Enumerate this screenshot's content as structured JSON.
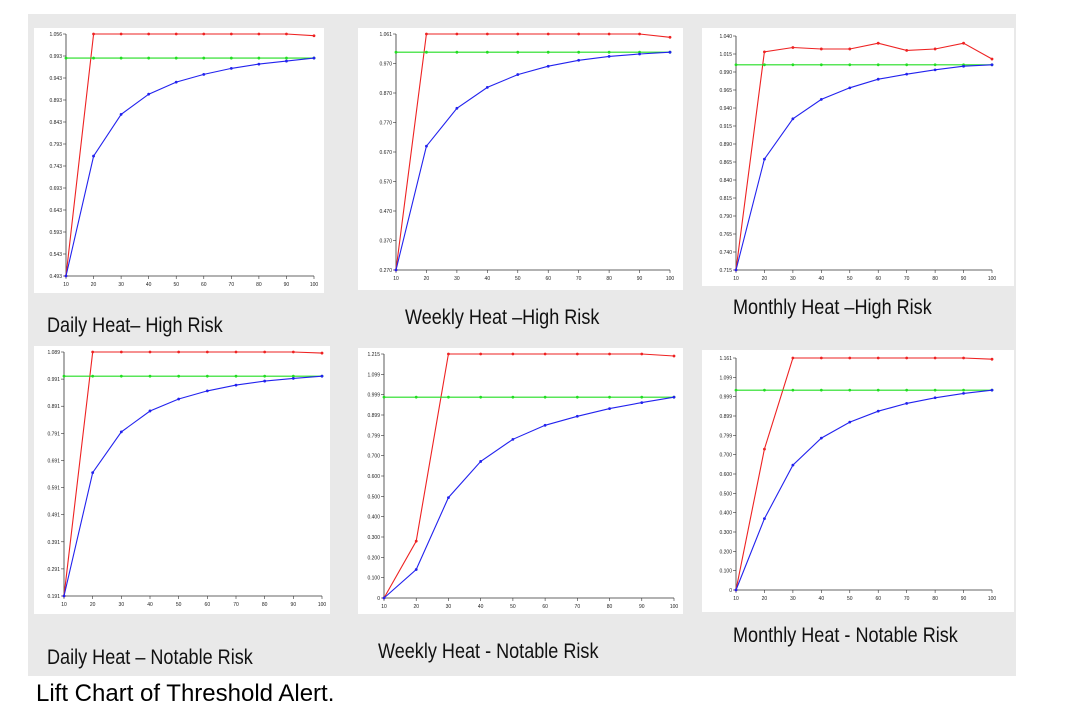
{
  "caption": "Lift Chart of Threshold Alert.",
  "colors": {
    "red": "#ee2222",
    "green": "#22dd22",
    "blue": "#2222ee",
    "axis": "#333333",
    "panel": "#e9e9e9"
  },
  "chart_data": [
    {
      "type": "line",
      "title": "Daily Heat– High Risk",
      "x": [
        10,
        20,
        30,
        40,
        50,
        60,
        70,
        80,
        90,
        100
      ],
      "x_ticks": [
        "10",
        "20",
        "30",
        "40",
        "50",
        "60",
        "70",
        "80",
        "90",
        "100"
      ],
      "y_ticks": [
        "0.493",
        "0.543",
        "0.593",
        "0.643",
        "0.693",
        "0.743",
        "0.793",
        "0.843",
        "0.893",
        "0.943",
        "0.993",
        "1.056"
      ],
      "ylim": [
        0.493,
        1.056
      ],
      "series": [
        {
          "color": "red",
          "values": [
            0.493,
            1.056,
            1.056,
            1.056,
            1.056,
            1.056,
            1.056,
            1.056,
            1.056,
            1.052
          ]
        },
        {
          "color": "green",
          "values": [
            1.0,
            1.0,
            1.0,
            1.0,
            1.0,
            1.0,
            1.0,
            1.0,
            1.0,
            1.0
          ]
        },
        {
          "color": "blue",
          "values": [
            0.493,
            0.772,
            0.869,
            0.916,
            0.944,
            0.962,
            0.976,
            0.986,
            0.993,
            1.0
          ]
        }
      ]
    },
    {
      "type": "line",
      "title": "Weekly Heat –High Risk",
      "x": [
        10,
        20,
        30,
        40,
        50,
        60,
        70,
        80,
        90,
        100
      ],
      "x_ticks": [
        "10",
        "20",
        "30",
        "40",
        "50",
        "60",
        "70",
        "80",
        "90",
        "100"
      ],
      "y_ticks": [
        "0.270",
        "0.370",
        "0.470",
        "0.570",
        "0.670",
        "0.770",
        "0.870",
        "0.970",
        "1.061"
      ],
      "ylim": [
        0.27,
        1.061
      ],
      "series": [
        {
          "color": "red",
          "values": [
            0.27,
            1.061,
            1.061,
            1.061,
            1.061,
            1.061,
            1.061,
            1.061,
            1.061,
            1.05
          ]
        },
        {
          "color": "green",
          "values": [
            1.0,
            1.0,
            1.0,
            1.0,
            1.0,
            1.0,
            1.0,
            1.0,
            1.0,
            1.0
          ]
        },
        {
          "color": "blue",
          "values": [
            0.27,
            0.685,
            0.812,
            0.882,
            0.925,
            0.953,
            0.973,
            0.986,
            0.994,
            1.0
          ]
        }
      ]
    },
    {
      "type": "line",
      "title": "Monthly Heat –High Risk",
      "x": [
        10,
        20,
        30,
        40,
        50,
        60,
        70,
        80,
        90,
        100
      ],
      "x_ticks": [
        "10",
        "20",
        "30",
        "40",
        "50",
        "60",
        "70",
        "80",
        "90",
        "100"
      ],
      "y_ticks": [
        "0.715",
        "0.740",
        "0.765",
        "0.790",
        "0.815",
        "0.840",
        "0.865",
        "0.890",
        "0.915",
        "0.940",
        "0.965",
        "0.990",
        "1.015",
        "1.040"
      ],
      "ylim": [
        0.715,
        1.04
      ],
      "series": [
        {
          "color": "red",
          "values": [
            0.715,
            1.018,
            1.024,
            1.022,
            1.022,
            1.03,
            1.02,
            1.022,
            1.03,
            1.008
          ]
        },
        {
          "color": "green",
          "values": [
            1.0,
            1.0,
            1.0,
            1.0,
            1.0,
            1.0,
            1.0,
            1.0,
            1.0,
            1.0
          ]
        },
        {
          "color": "blue",
          "values": [
            0.715,
            0.869,
            0.925,
            0.952,
            0.968,
            0.98,
            0.987,
            0.993,
            0.998,
            1.0
          ]
        }
      ]
    },
    {
      "type": "line",
      "title": "Daily Heat – Notable Risk",
      "x": [
        10,
        20,
        30,
        40,
        50,
        60,
        70,
        80,
        90,
        100
      ],
      "x_ticks": [
        "10",
        "20",
        "30",
        "40",
        "50",
        "60",
        "70",
        "80",
        "90",
        "100"
      ],
      "y_ticks": [
        "0.191",
        "0.291",
        "0.391",
        "0.491",
        "0.591",
        "0.691",
        "0.791",
        "0.891",
        "0.991",
        "1.089"
      ],
      "ylim": [
        0.191,
        1.089
      ],
      "series": [
        {
          "color": "red",
          "values": [
            0.191,
            1.089,
            1.089,
            1.089,
            1.089,
            1.089,
            1.089,
            1.089,
            1.089,
            1.085
          ]
        },
        {
          "color": "green",
          "values": [
            1.0,
            1.0,
            1.0,
            1.0,
            1.0,
            1.0,
            1.0,
            1.0,
            1.0,
            1.0
          ]
        },
        {
          "color": "blue",
          "values": [
            0.191,
            0.645,
            0.795,
            0.872,
            0.916,
            0.946,
            0.967,
            0.982,
            0.992,
            1.0
          ]
        }
      ]
    },
    {
      "type": "line",
      "title": "Weekly Heat -  Notable Risk",
      "x": [
        10,
        20,
        30,
        40,
        50,
        60,
        70,
        80,
        90,
        100
      ],
      "x_ticks": [
        "10",
        "20",
        "30",
        "40",
        "50",
        "60",
        "70",
        "80",
        "90",
        "100"
      ],
      "y_ticks": [
        "0",
        "0.100",
        "0.200",
        "0.300",
        "0.400",
        "0.500",
        "0.600",
        "0.700",
        "0.799",
        "0.899",
        "0.999",
        "1.099",
        "1.215"
      ],
      "ylim": [
        0,
        1.215
      ],
      "series": [
        {
          "color": "red",
          "values": [
            0,
            0.283,
            1.215,
            1.215,
            1.215,
            1.215,
            1.215,
            1.215,
            1.215,
            1.205
          ]
        },
        {
          "color": "green",
          "values": [
            1.0,
            1.0,
            1.0,
            1.0,
            1.0,
            1.0,
            1.0,
            1.0,
            1.0,
            1.0
          ]
        },
        {
          "color": "blue",
          "values": [
            0,
            0.142,
            0.5,
            0.68,
            0.79,
            0.86,
            0.905,
            0.943,
            0.973,
            1.0
          ]
        }
      ]
    },
    {
      "type": "line",
      "title": "Monthly Heat -  Notable Risk",
      "x": [
        10,
        20,
        30,
        40,
        50,
        60,
        70,
        80,
        90,
        100
      ],
      "x_ticks": [
        "10",
        "20",
        "30",
        "40",
        "50",
        "60",
        "70",
        "80",
        "90",
        "100"
      ],
      "y_ticks": [
        "0",
        "0.100",
        "0.200",
        "0.300",
        "0.400",
        "0.500",
        "0.600",
        "0.700",
        "0.799",
        "0.899",
        "0.999",
        "1.099",
        "1.161"
      ],
      "ylim": [
        0,
        1.161
      ],
      "series": [
        {
          "color": "red",
          "values": [
            0,
            0.705,
            1.161,
            1.161,
            1.161,
            1.161,
            1.161,
            1.161,
            1.161,
            1.155
          ]
        },
        {
          "color": "green",
          "values": [
            1.0,
            1.0,
            1.0,
            1.0,
            1.0,
            1.0,
            1.0,
            1.0,
            1.0,
            1.0
          ]
        },
        {
          "color": "blue",
          "values": [
            0,
            0.357,
            0.625,
            0.76,
            0.84,
            0.895,
            0.934,
            0.962,
            0.984,
            1.0
          ]
        }
      ]
    }
  ]
}
